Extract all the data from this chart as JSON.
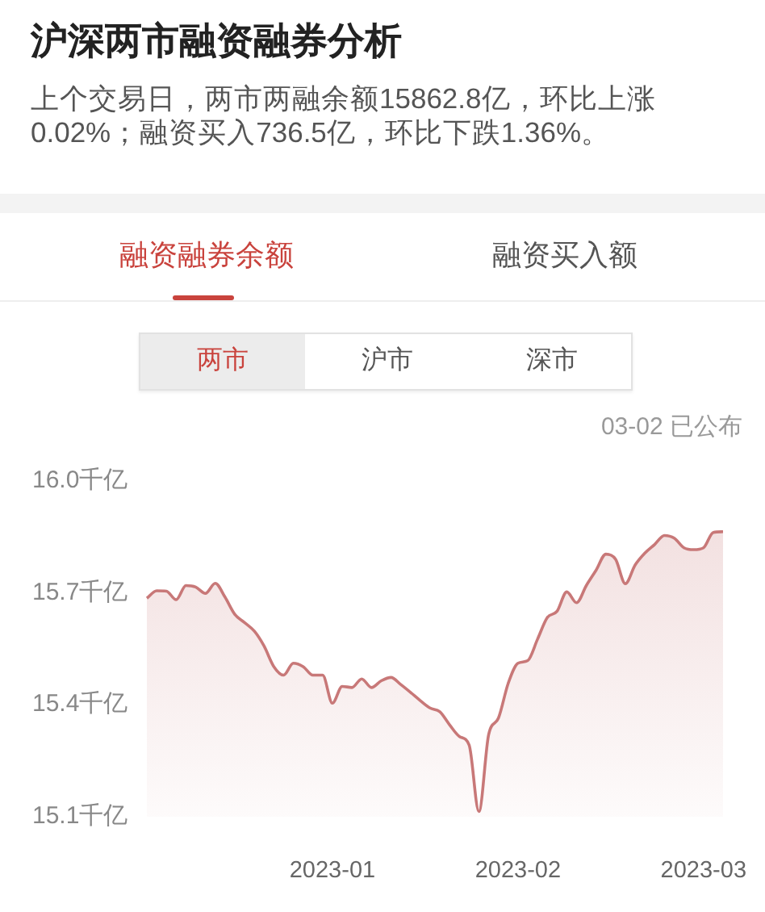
{
  "chart_data": {
    "type": "area",
    "title": "沪深两市融资融券分析",
    "subtitle": "上个交易日，两市两融余额15862.8亿，环比上涨0.02%；融资买入736.5亿，环比下跌1.36%。",
    "annotations": [
      "融资融券余额",
      "融资买入额",
      "两市",
      "沪市",
      "深市",
      "03-02 已公布"
    ],
    "categories": [
      null,
      null,
      null,
      null,
      null,
      null,
      null,
      null,
      null,
      null,
      null,
      null,
      null,
      null,
      null,
      null,
      null,
      null,
      null,
      "2023-01",
      null,
      null,
      null,
      null,
      null,
      null,
      null,
      null,
      null,
      null,
      null,
      null,
      null,
      null,
      null,
      null,
      null,
      null,
      "2023-02",
      null,
      null,
      null,
      null,
      null,
      null,
      null,
      null,
      null,
      null,
      null,
      null,
      null,
      null,
      null,
      null,
      null,
      null,
      "2023-03",
      null,
      null
    ],
    "values": [
      15.685,
      15.705,
      15.704,
      15.681,
      15.719,
      15.715,
      15.698,
      15.725,
      15.688,
      15.642,
      15.62,
      15.597,
      15.557,
      15.502,
      15.479,
      15.511,
      15.502,
      15.479,
      15.479,
      15.404,
      15.449,
      15.446,
      15.469,
      15.446,
      15.464,
      15.473,
      15.454,
      15.433,
      15.411,
      15.391,
      15.381,
      15.346,
      15.315,
      15.292,
      15.114,
      15.32,
      15.364,
      15.457,
      15.511,
      15.518,
      15.575,
      15.633,
      15.65,
      15.702,
      15.673,
      15.719,
      15.76,
      15.803,
      15.789,
      15.724,
      15.774,
      15.806,
      15.829,
      15.853,
      15.846,
      15.82,
      15.815,
      15.82,
      15.861,
      15.863
    ],
    "color": "#c87878",
    "ylim": [
      15.1,
      16.0
    ],
    "yticks": [
      {
        "value": 15.1,
        "label": "15.1千亿"
      },
      {
        "value": 15.4,
        "label": "15.4千亿"
      },
      {
        "value": 15.7,
        "label": "15.7千亿"
      },
      {
        "value": 16.0,
        "label": "16.0千亿"
      }
    ]
  }
}
